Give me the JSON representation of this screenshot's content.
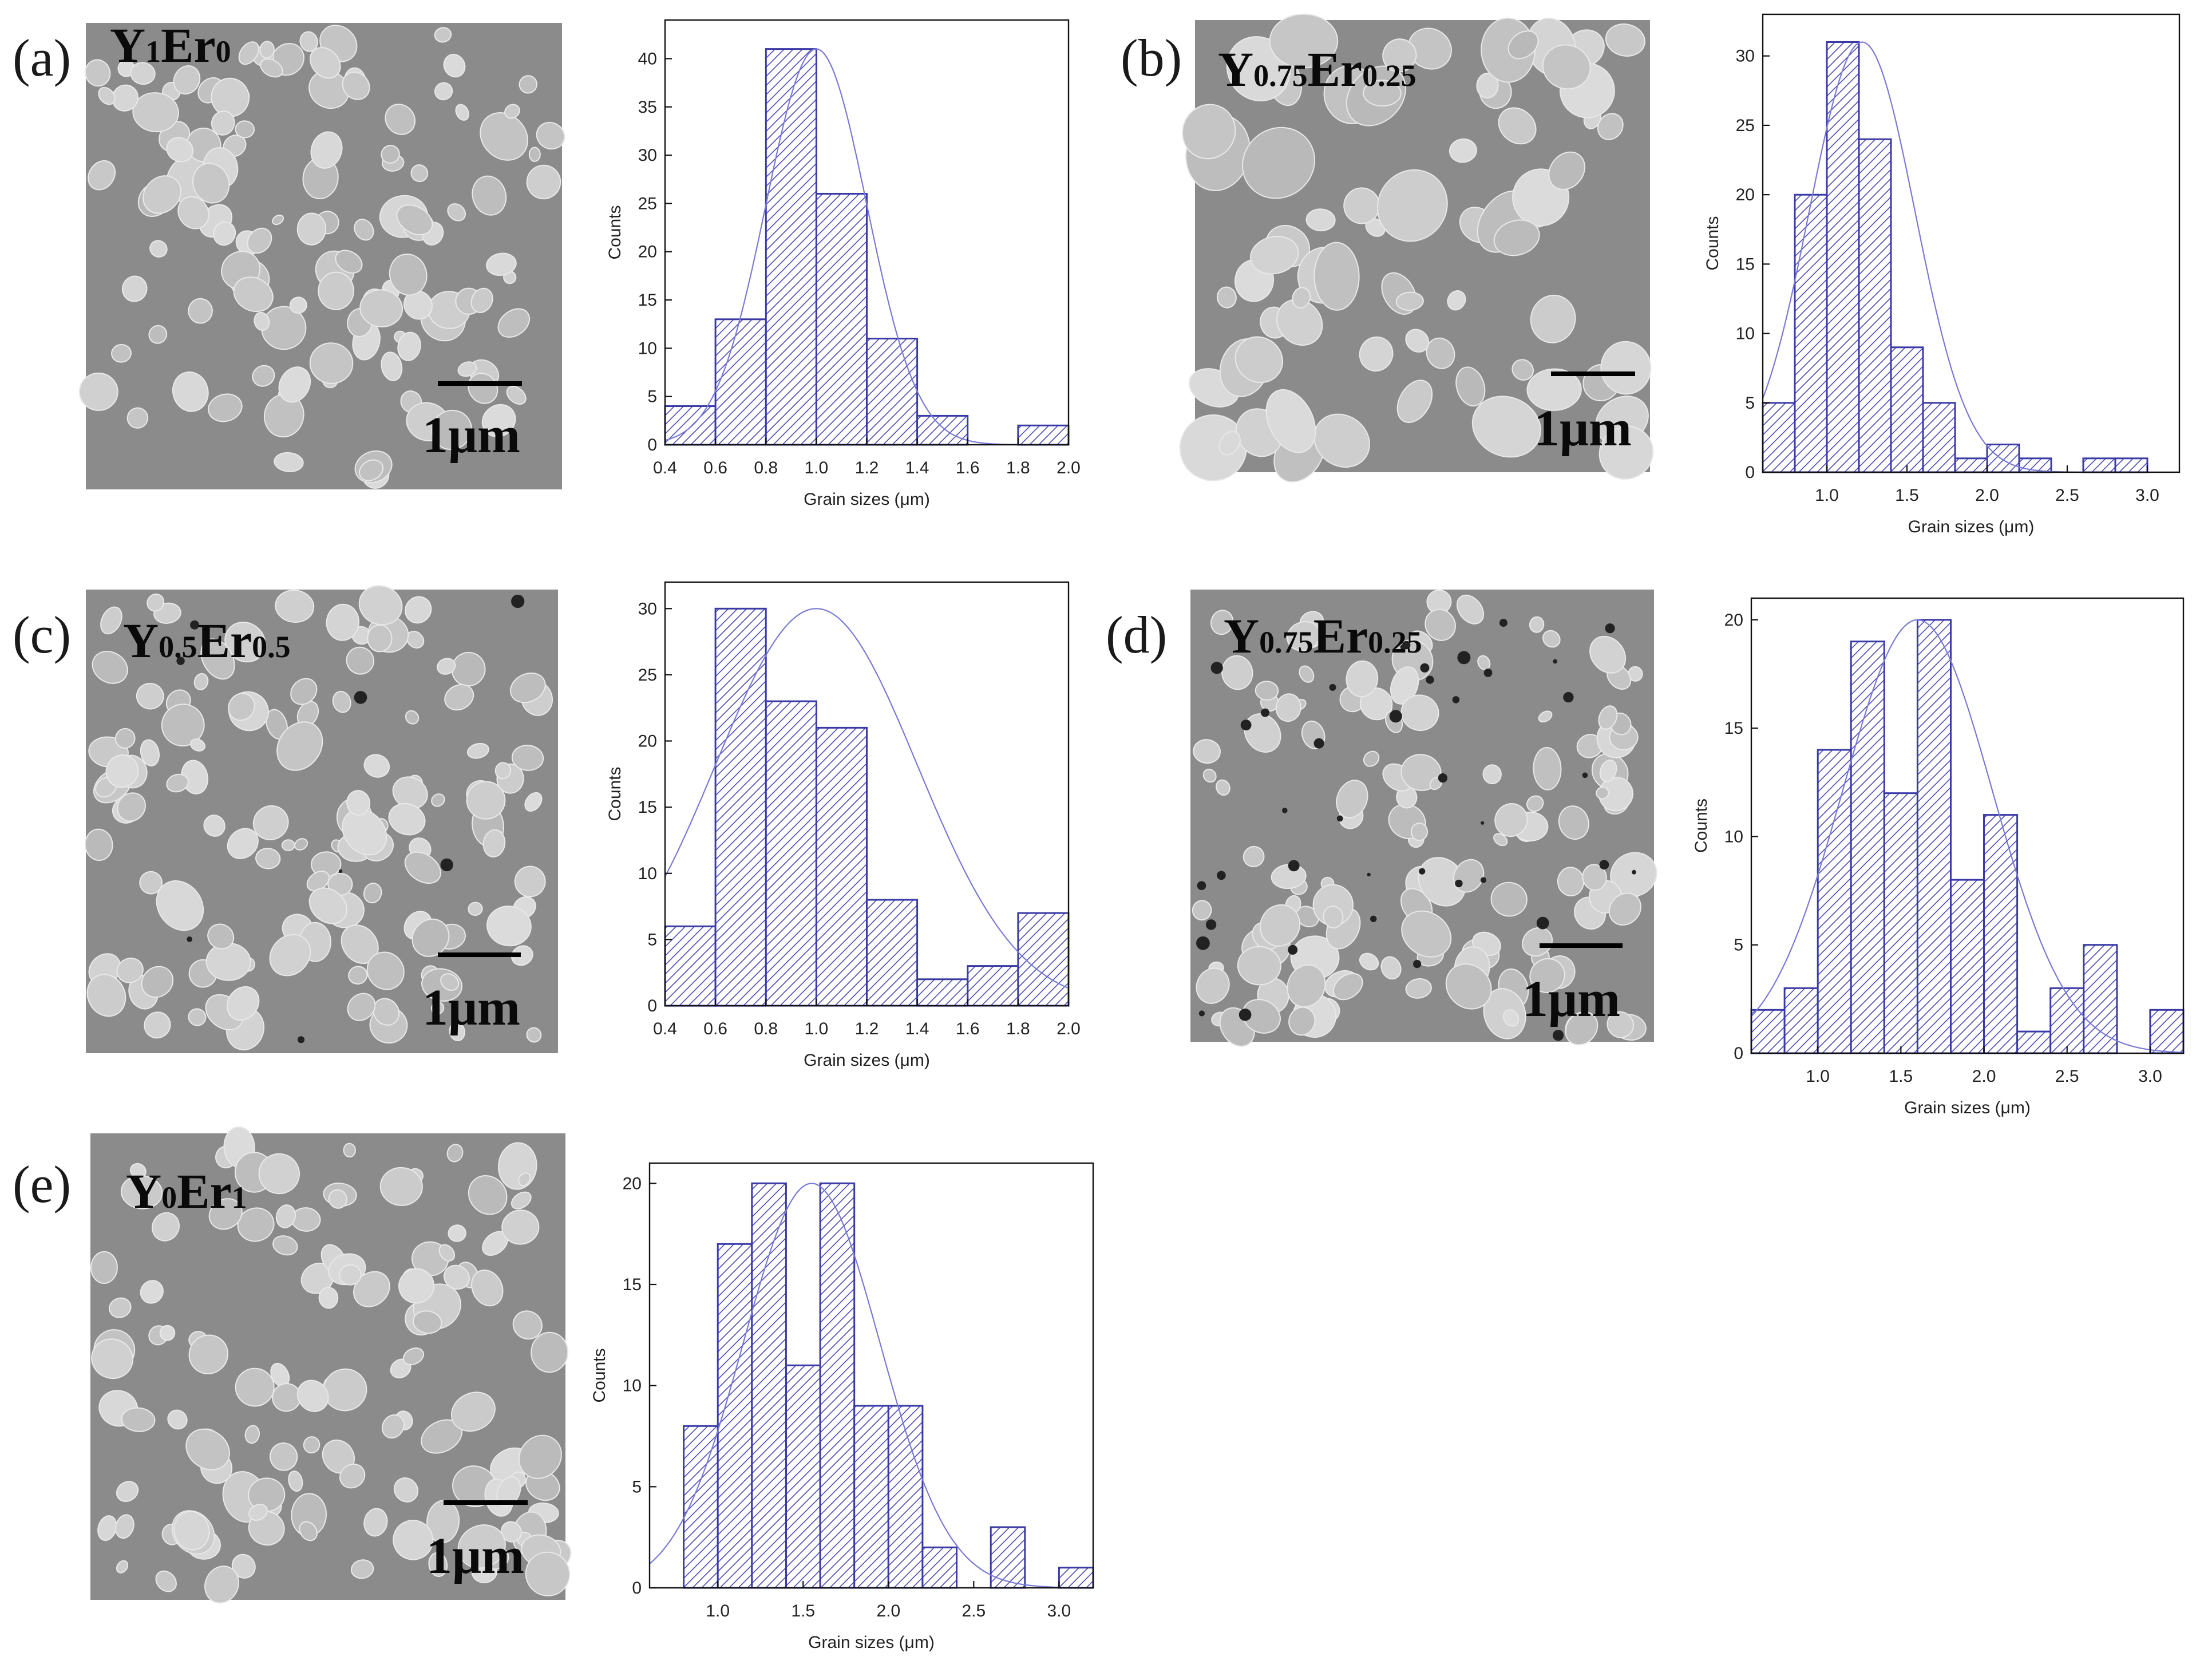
{
  "colors": {
    "bar_outline": "#3a3aa6",
    "hatch": "#4a4ab8",
    "fit_curve": "#7a7ad6",
    "micrograph_bg": "#8b8b8b",
    "grain": "#c9c9c9"
  },
  "panels": [
    {
      "id": "a",
      "label": "(a)",
      "sample_base": [
        "Y",
        "Er"
      ],
      "sample_sub": [
        "1",
        "0"
      ],
      "scale_bar": "1μm"
    },
    {
      "id": "b",
      "label": "(b)",
      "sample_base": [
        "Y",
        "Er"
      ],
      "sample_sub": [
        "0.75",
        "0.25"
      ],
      "scale_bar": "1μm"
    },
    {
      "id": "c",
      "label": "(c)",
      "sample_base": [
        "Y",
        "Er"
      ],
      "sample_sub": [
        "0.5",
        "0.5"
      ],
      "scale_bar": "1μm"
    },
    {
      "id": "d",
      "label": "(d)",
      "sample_base": [
        "Y",
        "Er"
      ],
      "sample_sub": [
        "0.75",
        "0.25"
      ],
      "scale_bar": "1μm"
    },
    {
      "id": "e",
      "label": "(e)",
      "sample_base": [
        "Y",
        "Er"
      ],
      "sample_sub": [
        "0",
        "1"
      ],
      "scale_bar": "1μm"
    }
  ],
  "chart_data": [
    {
      "panel": "a",
      "type": "bar",
      "bin_edges": [
        0.4,
        0.6,
        0.8,
        1.0,
        1.2,
        1.4,
        1.6,
        1.8,
        2.0
      ],
      "counts": [
        4,
        13,
        41,
        26,
        11,
        3,
        0,
        2
      ],
      "fit": {
        "type": "gaussian",
        "mean": 1.0,
        "sigma": 0.2,
        "peak": 41
      },
      "xlabel": "Grain sizes (μm)",
      "ylabel": "Counts",
      "xlim": [
        0.4,
        2.0
      ],
      "ylim": [
        0,
        44
      ],
      "xticks": [
        0.4,
        0.6,
        0.8,
        1.0,
        1.2,
        1.4,
        1.6,
        1.8,
        2.0
      ],
      "xtick_labels": [
        "0.4",
        "0.6",
        "0.8",
        "1.0",
        "1.2",
        "1.4",
        "1.6",
        "1.8",
        "2.0"
      ],
      "yticks": [
        0,
        5,
        10,
        15,
        20,
        25,
        30,
        35,
        40
      ]
    },
    {
      "panel": "b",
      "type": "bar",
      "bin_edges": [
        0.6,
        0.8,
        1.0,
        1.2,
        1.4,
        1.6,
        1.8,
        2.0,
        2.2,
        2.4,
        2.6,
        2.8,
        3.0
      ],
      "counts": [
        5,
        20,
        31,
        24,
        9,
        5,
        1,
        2,
        1,
        0,
        1,
        1
      ],
      "fit": {
        "type": "gaussian",
        "mean": 1.22,
        "sigma": 0.33,
        "peak": 31
      },
      "xlabel": "Grain sizes (μm)",
      "ylabel": "Counts",
      "xlim": [
        0.6,
        3.2
      ],
      "ylim": [
        0,
        33
      ],
      "xticks": [
        1.0,
        1.5,
        2.0,
        2.5,
        3.0
      ],
      "xtick_labels": [
        "1.0",
        "1.5",
        "2.0",
        "2.5",
        "3.0"
      ],
      "yticks": [
        0,
        5,
        10,
        15,
        20,
        25,
        30
      ]
    },
    {
      "panel": "c",
      "type": "bar",
      "bin_edges": [
        0.4,
        0.6,
        0.8,
        1.0,
        1.2,
        1.4,
        1.6,
        1.8,
        2.0
      ],
      "counts": [
        6,
        30,
        23,
        21,
        8,
        2,
        3,
        7
      ],
      "fit": {
        "type": "gaussian",
        "mean": 1.0,
        "sigma": 0.4,
        "peak": 30
      },
      "xlabel": "Grain sizes (μm)",
      "ylabel": "Counts",
      "xlim": [
        0.4,
        2.0
      ],
      "ylim": [
        0,
        32
      ],
      "xticks": [
        0.4,
        0.6,
        0.8,
        1.0,
        1.2,
        1.4,
        1.6,
        1.8,
        2.0
      ],
      "xtick_labels": [
        "0.4",
        "0.6",
        "0.8",
        "1.0",
        "1.2",
        "1.4",
        "1.6",
        "1.8",
        "2.0"
      ],
      "yticks": [
        0,
        5,
        10,
        15,
        20,
        25,
        30
      ]
    },
    {
      "panel": "d",
      "type": "bar",
      "bin_edges": [
        0.6,
        0.8,
        1.0,
        1.2,
        1.4,
        1.6,
        1.8,
        2.0,
        2.2,
        2.4,
        2.6,
        2.8,
        3.0,
        3.2
      ],
      "counts": [
        2,
        3,
        14,
        19,
        12,
        20,
        8,
        11,
        1,
        3,
        5,
        0,
        2
      ],
      "fit": {
        "type": "gaussian",
        "mean": 1.6,
        "sigma": 0.45,
        "peak": 20
      },
      "xlabel": "Grain sizes (μm)",
      "ylabel": "Counts",
      "xlim": [
        0.6,
        3.2
      ],
      "ylim": [
        0,
        21
      ],
      "xticks": [
        1.0,
        1.5,
        2.0,
        2.5,
        3.0
      ],
      "xtick_labels": [
        "1.0",
        "1.5",
        "2.0",
        "2.5",
        "3.0"
      ],
      "yticks": [
        0,
        5,
        10,
        15,
        20
      ]
    },
    {
      "panel": "e",
      "type": "bar",
      "bin_edges": [
        0.8,
        1.0,
        1.2,
        1.4,
        1.6,
        1.8,
        2.0,
        2.2,
        2.4,
        2.6,
        2.8,
        3.0,
        3.2
      ],
      "counts": [
        8,
        17,
        20,
        11,
        20,
        9,
        9,
        2,
        0,
        3,
        0,
        1
      ],
      "fit": {
        "type": "gaussian",
        "mean": 1.55,
        "sigma": 0.4,
        "peak": 20
      },
      "xlabel": "Grain sizes (μm)",
      "ylabel": "Counts",
      "xlim": [
        0.6,
        3.2
      ],
      "ylim": [
        0,
        21
      ],
      "xticks": [
        1.0,
        1.5,
        2.0,
        2.5,
        3.0
      ],
      "xtick_labels": [
        "1.0",
        "1.5",
        "2.0",
        "2.5",
        "3.0"
      ],
      "yticks": [
        0,
        5,
        10,
        15,
        20
      ]
    }
  ]
}
